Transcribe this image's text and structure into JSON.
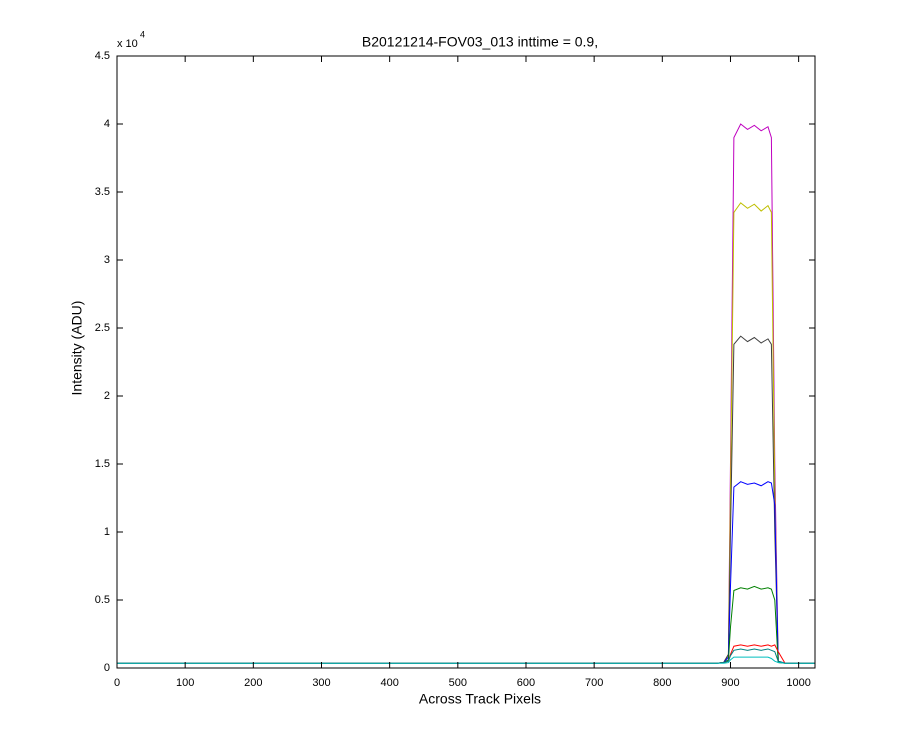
{
  "chart_data": {
    "type": "line",
    "title": "B20121214-FOV03_013 inttime = 0.9,",
    "x_label": "Across Track Pixels",
    "y_label": "Intensity (ADU)",
    "y_exponent_base": "x 10",
    "y_exponent_power": "4",
    "xlim": [
      0,
      1024
    ],
    "ylim": [
      0,
      4.5
    ],
    "xticks": [
      0,
      100,
      200,
      300,
      400,
      500,
      600,
      700,
      800,
      900,
      1000
    ],
    "yticks": [
      0,
      0.5,
      1,
      1.5,
      2,
      2.5,
      3,
      3.5,
      4,
      4.5
    ],
    "grid": false,
    "x": [
      0,
      200,
      400,
      600,
      800,
      880,
      890,
      897,
      900,
      905,
      915,
      925,
      935,
      945,
      955,
      960,
      965,
      970,
      980,
      1000,
      1023
    ],
    "series": [
      {
        "color": "#bf00bf",
        "values": [
          0.035,
          0.035,
          0.035,
          0.035,
          0.035,
          0.035,
          0.04,
          0.1,
          1.5,
          3.9,
          4.0,
          3.96,
          3.99,
          3.95,
          3.98,
          3.9,
          1.5,
          0.05,
          0.035,
          0.035,
          0.035
        ]
      },
      {
        "color": "#bfbf00",
        "values": [
          0.035,
          0.035,
          0.035,
          0.035,
          0.035,
          0.035,
          0.04,
          0.1,
          1.3,
          3.35,
          3.42,
          3.38,
          3.41,
          3.36,
          3.4,
          3.35,
          1.3,
          0.05,
          0.035,
          0.035,
          0.035
        ]
      },
      {
        "color": "#404040",
        "values": [
          0.035,
          0.035,
          0.035,
          0.035,
          0.035,
          0.035,
          0.04,
          0.1,
          1.0,
          2.38,
          2.44,
          2.4,
          2.43,
          2.39,
          2.42,
          2.38,
          1.0,
          0.05,
          0.035,
          0.035,
          0.035
        ]
      },
      {
        "color": "#0000ff",
        "values": [
          0.035,
          0.035,
          0.035,
          0.035,
          0.035,
          0.035,
          0.04,
          0.08,
          0.6,
          1.33,
          1.37,
          1.35,
          1.36,
          1.34,
          1.37,
          1.36,
          1.2,
          0.05,
          0.035,
          0.035,
          0.035
        ]
      },
      {
        "color": "#008000",
        "values": [
          0.035,
          0.035,
          0.035,
          0.035,
          0.035,
          0.035,
          0.04,
          0.06,
          0.3,
          0.57,
          0.59,
          0.58,
          0.6,
          0.58,
          0.59,
          0.58,
          0.5,
          0.04,
          0.035,
          0.035,
          0.035
        ]
      },
      {
        "color": "#ff0000",
        "values": [
          0.035,
          0.035,
          0.035,
          0.035,
          0.035,
          0.035,
          0.04,
          0.05,
          0.1,
          0.16,
          0.17,
          0.16,
          0.17,
          0.16,
          0.17,
          0.16,
          0.17,
          0.12,
          0.035,
          0.035,
          0.035
        ]
      },
      {
        "color": "#008080",
        "values": [
          0.035,
          0.035,
          0.035,
          0.035,
          0.035,
          0.035,
          0.04,
          0.05,
          0.09,
          0.13,
          0.14,
          0.13,
          0.14,
          0.13,
          0.14,
          0.13,
          0.12,
          0.05,
          0.035,
          0.035,
          0.035
        ]
      },
      {
        "color": "#00bfbf",
        "values": [
          0.035,
          0.035,
          0.035,
          0.035,
          0.035,
          0.035,
          0.035,
          0.04,
          0.06,
          0.08,
          0.08,
          0.08,
          0.08,
          0.08,
          0.08,
          0.07,
          0.05,
          0.04,
          0.035,
          0.035,
          0.035
        ]
      }
    ]
  }
}
